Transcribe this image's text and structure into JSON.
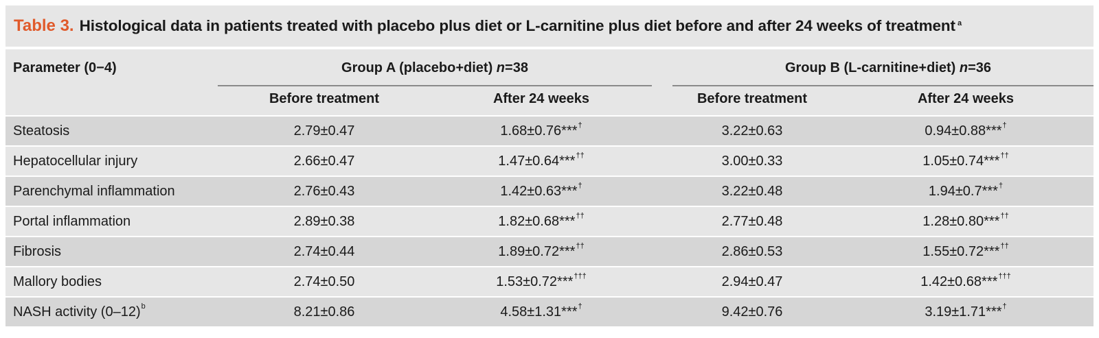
{
  "table": {
    "number": "Table 3.",
    "title": "Histological data in patients treated with placebo plus diet or L-carnitine plus diet before and after 24 weeks of treatment",
    "title_sup": "a",
    "param_header": "Parameter (0−4)",
    "group_a": {
      "label": "Group A (placebo+diet) ",
      "n": "n",
      "n_value": "=38"
    },
    "group_b": {
      "label": "Group B (L-carnitine+diet) ",
      "n": "n",
      "n_value": "=36"
    },
    "sub_headers": [
      "Before treatment",
      "After 24 weeks",
      "Before treatment",
      "After 24 weeks"
    ],
    "rows": [
      {
        "label": "Steatosis",
        "label_sup": "",
        "cells": [
          {
            "v": "2.79±0.47",
            "s": ""
          },
          {
            "v": "1.68±0.76***",
            "s": "†"
          },
          {
            "v": "3.22±0.63",
            "s": ""
          },
          {
            "v": "0.94±0.88***",
            "s": "†"
          }
        ]
      },
      {
        "label": "Hepatocellular injury",
        "label_sup": "",
        "cells": [
          {
            "v": "2.66±0.47",
            "s": ""
          },
          {
            "v": "1.47±0.64***",
            "s": "††"
          },
          {
            "v": "3.00±0.33",
            "s": ""
          },
          {
            "v": "1.05±0.74***",
            "s": "††"
          }
        ]
      },
      {
        "label": "Parenchymal inflammation",
        "label_sup": "",
        "cells": [
          {
            "v": "2.76±0.43",
            "s": ""
          },
          {
            "v": "1.42±0.63***",
            "s": "†"
          },
          {
            "v": "3.22±0.48",
            "s": ""
          },
          {
            "v": "1.94±0.7***",
            "s": "†"
          }
        ]
      },
      {
        "label": "Portal inflammation",
        "label_sup": "",
        "cells": [
          {
            "v": "2.89±0.38",
            "s": ""
          },
          {
            "v": "1.82±0.68***",
            "s": "††"
          },
          {
            "v": "2.77±0.48",
            "s": ""
          },
          {
            "v": "1.28±0.80***",
            "s": "††"
          }
        ]
      },
      {
        "label": "Fibrosis",
        "label_sup": "",
        "cells": [
          {
            "v": "2.74±0.44",
            "s": ""
          },
          {
            "v": "1.89±0.72***",
            "s": "††"
          },
          {
            "v": "2.86±0.53",
            "s": ""
          },
          {
            "v": "1.55±0.72***",
            "s": "††"
          }
        ]
      },
      {
        "label": "Mallory bodies",
        "label_sup": "",
        "cells": [
          {
            "v": "2.74±0.50",
            "s": ""
          },
          {
            "v": "1.53±0.72***",
            "s": "†††"
          },
          {
            "v": "2.94±0.47",
            "s": ""
          },
          {
            "v": "1.42±0.68***",
            "s": "†††"
          }
        ]
      },
      {
        "label": "NASH activity (0–12)",
        "label_sup": "b",
        "cells": [
          {
            "v": "8.21±0.86",
            "s": ""
          },
          {
            "v": "4.58±1.31***",
            "s": "†"
          },
          {
            "v": "9.42±0.76",
            "s": ""
          },
          {
            "v": "3.19±1.71***",
            "s": "†"
          }
        ]
      }
    ]
  }
}
